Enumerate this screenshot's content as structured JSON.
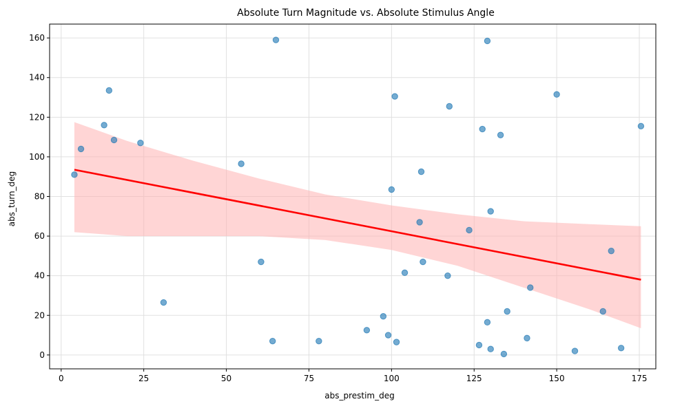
{
  "chart_data": {
    "type": "scatter",
    "title": "Absolute Turn Magnitude vs. Absolute Stimulus Angle",
    "xlabel": "abs_prestim_deg",
    "ylabel": "abs_turn_deg",
    "xlim": [
      -3.5,
      180
    ],
    "ylim": [
      -7,
      167
    ],
    "xticks": [
      0,
      25,
      50,
      75,
      100,
      125,
      150,
      175
    ],
    "yticks": [
      0,
      20,
      40,
      60,
      80,
      100,
      120,
      140,
      160
    ],
    "grid": true,
    "colors": {
      "points": "#1f77b4",
      "regression_line": "#ff0000",
      "confidence_band": "#ffb3b3"
    },
    "series": [
      {
        "type": "scatter",
        "points": [
          [
            4,
            91
          ],
          [
            6,
            104
          ],
          [
            13,
            116
          ],
          [
            14.5,
            133.5
          ],
          [
            16,
            108.5
          ],
          [
            24,
            107
          ],
          [
            31,
            26.5
          ],
          [
            54.5,
            96.5
          ],
          [
            60.5,
            47
          ],
          [
            64,
            7
          ],
          [
            65,
            159
          ],
          [
            78,
            7
          ],
          [
            92.5,
            12.5
          ],
          [
            97.5,
            19.5
          ],
          [
            99,
            10
          ],
          [
            100,
            83.5
          ],
          [
            101,
            130.5
          ],
          [
            101.5,
            6.5
          ],
          [
            104,
            41.5
          ],
          [
            108.5,
            67
          ],
          [
            109,
            92.5
          ],
          [
            109.5,
            47
          ],
          [
            117,
            40
          ],
          [
            117.5,
            125.5
          ],
          [
            123.5,
            63
          ],
          [
            126.5,
            5
          ],
          [
            127.5,
            114
          ],
          [
            129,
            16.5
          ],
          [
            129,
            158.5
          ],
          [
            130,
            72.5
          ],
          [
            130,
            3
          ],
          [
            133,
            111
          ],
          [
            134,
            0.5
          ],
          [
            135,
            22
          ],
          [
            141,
            8.5
          ],
          [
            142,
            34
          ],
          [
            150,
            131.5
          ],
          [
            155.5,
            2
          ],
          [
            164,
            22
          ],
          [
            166.5,
            52.5
          ],
          [
            169.5,
            3.5
          ],
          [
            175.5,
            115.5
          ]
        ]
      },
      {
        "type": "regression",
        "line": [
          [
            4,
            93.5
          ],
          [
            175.5,
            38
          ]
        ],
        "band_upper": [
          [
            4,
            117.5
          ],
          [
            20,
            108
          ],
          [
            40,
            98
          ],
          [
            60,
            89
          ],
          [
            80,
            81
          ],
          [
            100,
            75.5
          ],
          [
            120,
            71
          ],
          [
            140,
            67.5
          ],
          [
            160,
            66
          ],
          [
            175.5,
            65
          ]
        ],
        "band_lower": [
          [
            4,
            62
          ],
          [
            20,
            60
          ],
          [
            40,
            60
          ],
          [
            60,
            60
          ],
          [
            80,
            58
          ],
          [
            100,
            53
          ],
          [
            120,
            45
          ],
          [
            140,
            34
          ],
          [
            160,
            23
          ],
          [
            175.5,
            13.5
          ]
        ]
      }
    ]
  }
}
